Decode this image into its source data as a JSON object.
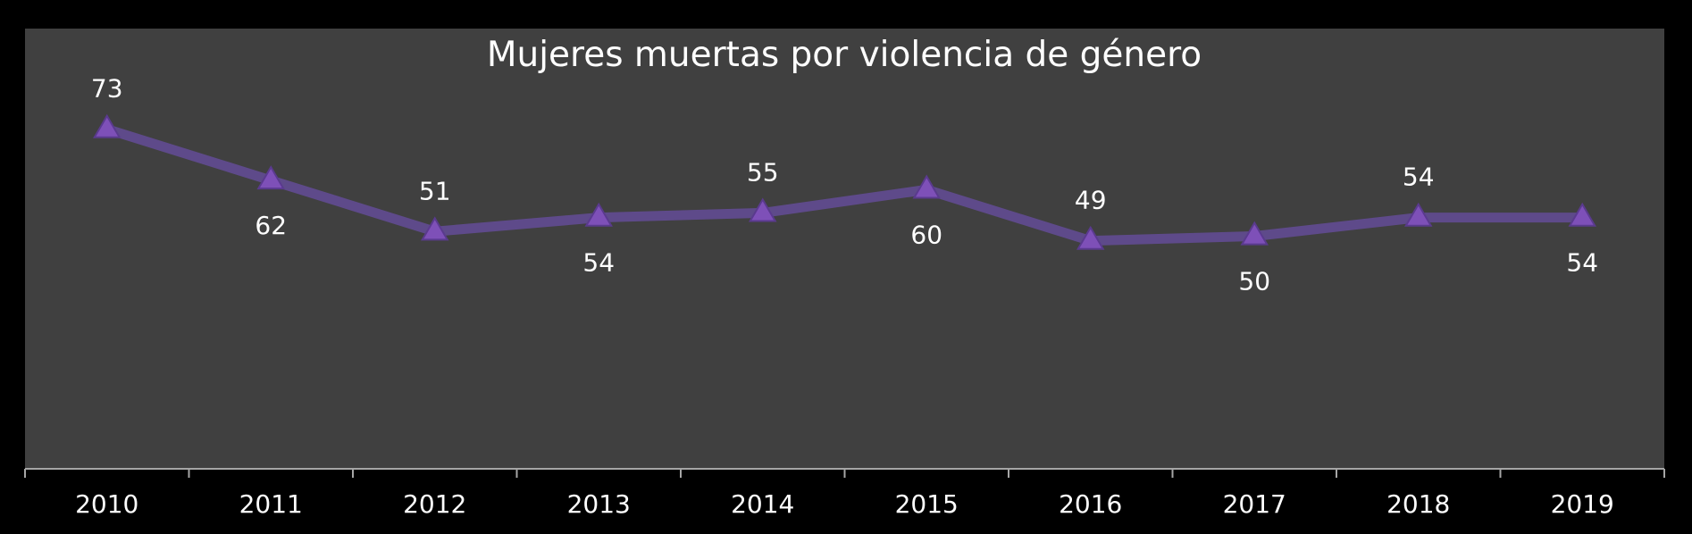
{
  "colors": {
    "page_background": "#000000",
    "plot_background": "#404040",
    "line": "#5e4a8a",
    "marker": "#7e50b8",
    "marker_edge": "#5a3a8e",
    "text": "#ffffff",
    "axis": "#a6a6a6"
  },
  "chart_data": {
    "type": "line",
    "title": "Mujeres muertas por violencia de género",
    "xlabel": "",
    "ylabel": "",
    "categories": [
      "2010",
      "2011",
      "2012",
      "2013",
      "2014",
      "2015",
      "2016",
      "2017",
      "2018",
      "2019"
    ],
    "series": [
      {
        "values": [
          73,
          62,
          51,
          54,
          55,
          60,
          49,
          50,
          54,
          54
        ],
        "label_positions": [
          "above",
          "below",
          "above",
          "below",
          "above",
          "below",
          "above",
          "below",
          "above",
          "below"
        ],
        "marker": "triangle"
      }
    ],
    "ylim": [
      0,
      95
    ],
    "grid": false,
    "legend": "none",
    "y_axis_visible": false
  }
}
